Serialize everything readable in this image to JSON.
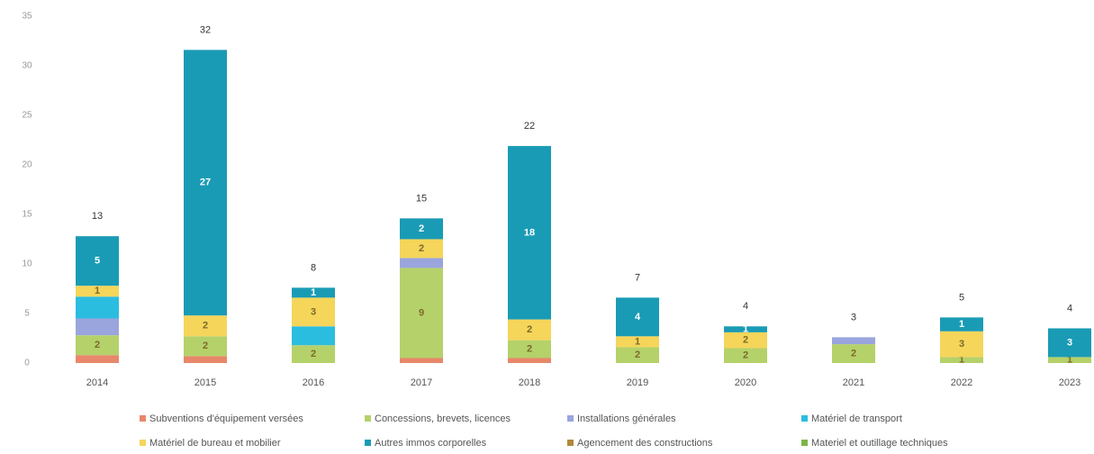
{
  "chart_data": {
    "type": "stacked_bar",
    "categories": [
      "2014",
      "2015",
      "2016",
      "2017",
      "2018",
      "2019",
      "2020",
      "2021",
      "2022",
      "2023"
    ],
    "ylim": [
      0,
      35
    ],
    "yticks": [
      0,
      5,
      10,
      15,
      20,
      25,
      30,
      35
    ],
    "grid": false,
    "totals": [
      13,
      32,
      8,
      15,
      22,
      7,
      4,
      3,
      5,
      4
    ],
    "series": [
      {
        "name": "Subventions d'équipement versées",
        "color": "#e8876b",
        "values": [
          0.8,
          0.7,
          0,
          0.5,
          0.5,
          0,
          0,
          0,
          0,
          0
        ]
      },
      {
        "name": "Concessions, brevets, licences",
        "color": "#b5d16a",
        "values": [
          2.0,
          2.0,
          1.8,
          9.1,
          1.8,
          1.6,
          1.5,
          1.9,
          0.6,
          0.6
        ],
        "value_labels": [
          "2",
          "2",
          "2",
          "9",
          "2",
          "2",
          "2",
          "2",
          "1",
          "1"
        ]
      },
      {
        "name": "Installations générales",
        "color": "#9aa5dd",
        "values": [
          1.7,
          0,
          0,
          1.0,
          0,
          0,
          0,
          0.7,
          0,
          0
        ]
      },
      {
        "name": "Matériel de transport",
        "color": "#2bbde0",
        "values": [
          2.2,
          0,
          1.9,
          0,
          0,
          0,
          0,
          0,
          0,
          0
        ]
      },
      {
        "name": "Matériel de bureau et mobilier",
        "color": "#f5d55a",
        "values": [
          1.1,
          2.1,
          2.9,
          1.9,
          2.1,
          1.1,
          1.6,
          0,
          2.6,
          0
        ],
        "value_labels": [
          "1",
          "2",
          "3",
          "2",
          "2",
          "1",
          "2",
          null,
          "3",
          null
        ]
      },
      {
        "name": "Autres immos corporelles",
        "color": "#1a9bb5",
        "values": [
          5.0,
          26.8,
          1.0,
          2.1,
          17.5,
          3.9,
          0.6,
          0,
          1.4,
          2.9
        ],
        "value_labels": [
          "5",
          "27",
          "1",
          "2",
          "18",
          "4",
          "1",
          null,
          "1",
          "3"
        ]
      },
      {
        "name": "Agencement des constructions",
        "color": "#b08a3a",
        "values": [
          0,
          0,
          0,
          0,
          0,
          0,
          0,
          0,
          0,
          0
        ]
      },
      {
        "name": "Materiel et outillage techniques",
        "color": "#7ab648",
        "values": [
          0,
          0,
          0,
          0,
          0,
          0,
          0,
          0,
          0,
          0
        ]
      }
    ]
  }
}
